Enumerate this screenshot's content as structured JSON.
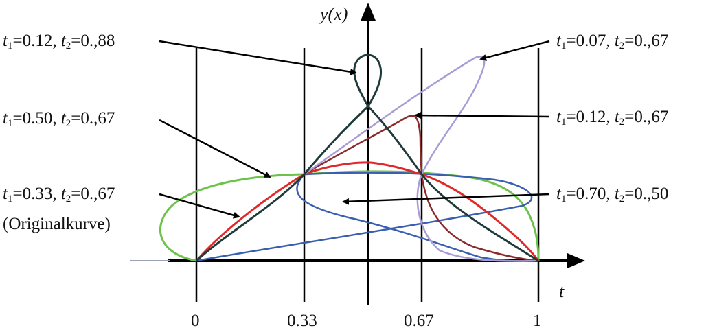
{
  "axes": {
    "y_label": "y(x)",
    "x_label": "t",
    "x_ticks": [
      "0",
      "0.33",
      "0.67",
      "1"
    ]
  },
  "labels": [
    {
      "id": "l1",
      "t1": "0.12",
      "t2": "0.,88"
    },
    {
      "id": "l2",
      "t1": "0.50",
      "t2": "0.,67"
    },
    {
      "id": "l3",
      "t1": "0.33",
      "t2": "0.,67",
      "note": "(Originalkurve)"
    },
    {
      "id": "r1",
      "t1": "0.07",
      "t2": "0.,67"
    },
    {
      "id": "r2",
      "t1": "0.12",
      "t2": "0.,67"
    },
    {
      "id": "r3",
      "t1": "0.70",
      "t2": "0.,50"
    }
  ],
  "colors": {
    "black_curve": "#1f3a3a",
    "red_curve": "#e02828",
    "green_curve": "#6cc24a",
    "blue_curve": "#3a5fb0",
    "lavender_curve": "#a99bd4",
    "darkred_curve": "#8b2a2a"
  }
}
